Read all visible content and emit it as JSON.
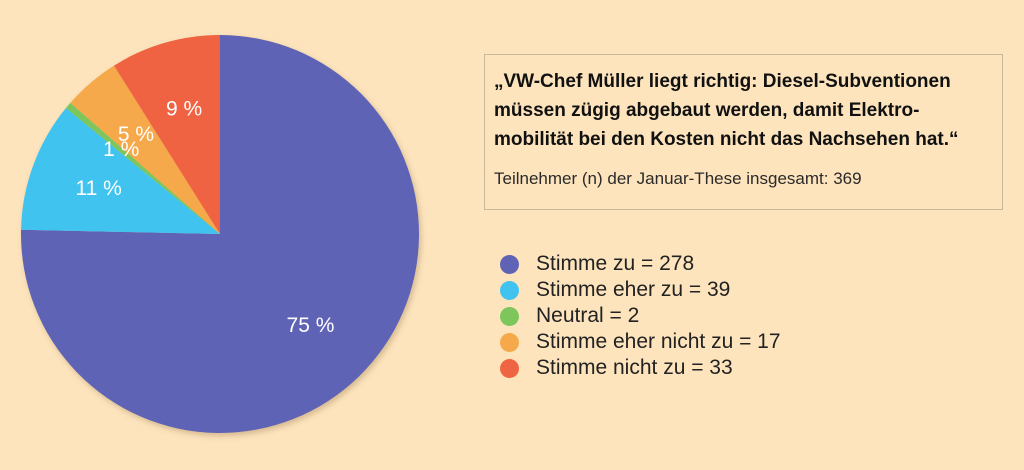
{
  "chart_data": {
    "type": "pie",
    "slices": [
      {
        "label": "Stimme zu",
        "count": 278,
        "percent_label": "75 %",
        "color": "#5f63b5"
      },
      {
        "label": "Stimme eher zu",
        "count": 39,
        "percent_label": "11 %",
        "color": "#41c3ef"
      },
      {
        "label": "Neutral",
        "count": 2,
        "percent_label": "1 %",
        "color": "#7cc65c"
      },
      {
        "label": "Stimme eher nicht zu",
        "count": 17,
        "percent_label": "5 %",
        "color": "#f5a94b"
      },
      {
        "label": "Stimme nicht zu",
        "count": 33,
        "percent_label": "9 %",
        "color": "#ef6443"
      }
    ],
    "legend": [
      "Stimme zu = 278",
      "Stimme eher zu = 39",
      "Neutral = 2",
      "Stimme eher nicht zu = 17",
      "Stimme nicht zu = 33"
    ],
    "quote": "„VW-Chef Müller liegt richtig: Diesel-Subventionen müssen zügig abgebaut werden, damit Elektro-mobilität bei den Kosten nicht das Nachsehen hat.“",
    "participants": "Teilnehmer (n) der Januar-These insgesamt: 369",
    "legend_placement": "right"
  }
}
